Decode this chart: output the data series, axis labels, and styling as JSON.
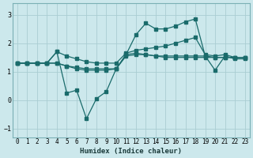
{
  "xlabel": "Humidex (Indice chaleur)",
  "xlim": [
    -0.5,
    23.5
  ],
  "ylim": [
    -1.3,
    3.4
  ],
  "yticks": [
    -1,
    0,
    1,
    2,
    3
  ],
  "xticks": [
    0,
    1,
    2,
    3,
    4,
    5,
    6,
    7,
    8,
    9,
    10,
    11,
    12,
    13,
    14,
    15,
    16,
    17,
    18,
    19,
    20,
    21,
    22,
    23
  ],
  "bg_color": "#cce8ec",
  "grid_color": "#aacdd2",
  "line_color": "#1a6b6b",
  "figsize": [
    3.2,
    2.0
  ],
  "dpi": 100,
  "series": [
    [
      1.3,
      1.3,
      1.3,
      1.3,
      1.7,
      0.25,
      0.35,
      -0.65,
      0.05,
      0.3,
      1.1,
      1.6,
      2.3,
      2.7,
      2.5,
      2.5,
      2.6,
      2.75,
      2.85,
      1.55,
      1.05,
      1.55,
      1.45,
      1.45
    ],
    [
      1.3,
      1.3,
      1.3,
      1.3,
      1.3,
      1.2,
      1.15,
      1.1,
      1.1,
      1.1,
      1.1,
      1.6,
      1.65,
      1.6,
      1.55,
      1.5,
      1.5,
      1.5,
      1.5,
      1.5,
      1.5,
      1.5,
      1.5,
      1.5
    ],
    [
      1.3,
      1.3,
      1.3,
      1.3,
      1.7,
      1.55,
      1.45,
      1.35,
      1.3,
      1.3,
      1.3,
      1.65,
      1.75,
      1.8,
      1.85,
      1.9,
      2.0,
      2.1,
      2.2,
      1.6,
      1.55,
      1.6,
      1.5,
      1.5
    ],
    [
      1.3,
      1.3,
      1.3,
      1.3,
      1.3,
      1.2,
      1.1,
      1.05,
      1.05,
      1.05,
      1.1,
      1.55,
      1.6,
      1.6,
      1.55,
      1.55,
      1.55,
      1.55,
      1.55,
      1.55,
      1.5,
      1.5,
      1.5,
      1.5
    ]
  ]
}
